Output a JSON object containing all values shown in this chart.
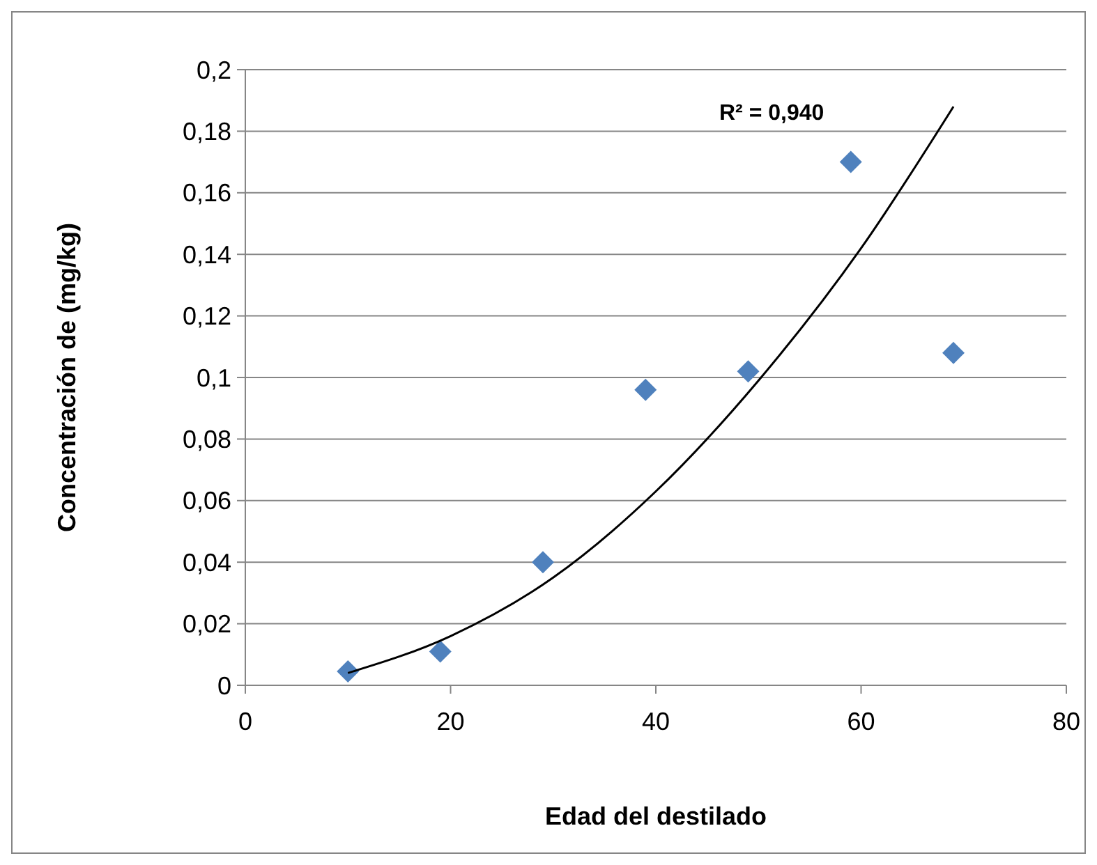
{
  "chart_data": {
    "type": "scatter",
    "xlabel": "Edad del destilado",
    "ylabel": "Concentración de (mg/kg)",
    "xlim": [
      0,
      80
    ],
    "xticks": [
      0,
      20,
      40,
      60,
      80
    ],
    "ylim": [
      0,
      0.2
    ],
    "yticks": [
      {
        "value": 0,
        "label": "0"
      },
      {
        "value": 0.02,
        "label": "0,02"
      },
      {
        "value": 0.04,
        "label": "0,04"
      },
      {
        "value": 0.06,
        "label": "0,06"
      },
      {
        "value": 0.08,
        "label": "0,08"
      },
      {
        "value": 0.1,
        "label": "0,1"
      },
      {
        "value": 0.12,
        "label": "0,12"
      },
      {
        "value": 0.14,
        "label": "0,14"
      },
      {
        "value": 0.16,
        "label": "0,16"
      },
      {
        "value": 0.18,
        "label": "0,18"
      },
      {
        "value": 0.2,
        "label": "0,2"
      }
    ],
    "grid": "y",
    "annotations": [
      "R² = 0,940"
    ],
    "series": [
      {
        "color": "#4f81bd",
        "marker": "diamond",
        "x": [
          10,
          19,
          29,
          39,
          49,
          59,
          69
        ],
        "values": [
          0.0045,
          0.011,
          0.04,
          0.096,
          0.102,
          0.17,
          0.108
        ]
      },
      {
        "type": "line",
        "color": "#000000",
        "marker": "none",
        "line_style": "solid",
        "x": [
          10,
          20,
          30,
          40,
          50,
          60,
          69
        ],
        "values": [
          0.004,
          0.016,
          0.035,
          0.063,
          0.099,
          0.142,
          0.188
        ]
      }
    ]
  }
}
